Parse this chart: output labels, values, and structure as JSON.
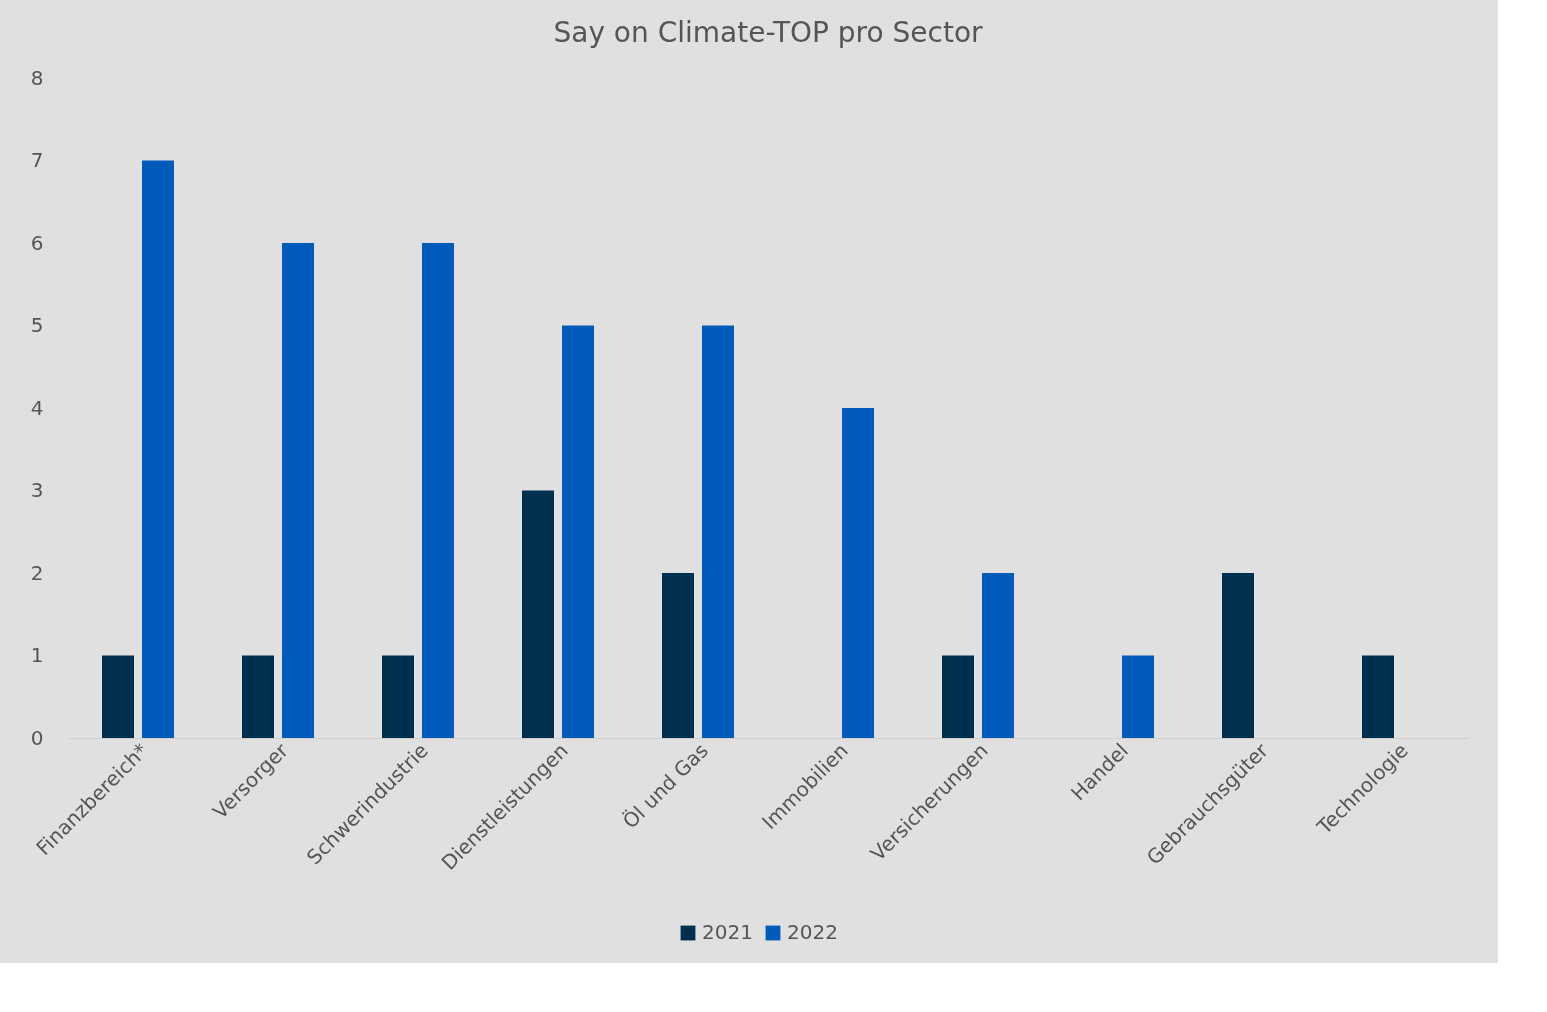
{
  "chart_data": {
    "type": "bar",
    "title": "Say on Climate-TOP pro Sector",
    "categories": [
      "Finanzbereich*",
      "Versorger",
      "Schwerindustrie",
      "Dienstleistungen",
      "Öl und Gas",
      "Immobilien",
      "Versicherungen",
      "Handel",
      "Gebrauchsgüter",
      "Technologie"
    ],
    "series": [
      {
        "name": "2021",
        "color": "#00304f",
        "values": [
          1,
          1,
          1,
          3,
          2,
          null,
          1,
          null,
          2,
          1
        ]
      },
      {
        "name": "2022",
        "color": "#005bbb",
        "values": [
          7,
          6,
          6,
          5,
          5,
          4,
          2,
          1,
          null,
          null
        ]
      }
    ],
    "ylim": [
      0,
      8
    ],
    "yticks": [
      0,
      1,
      2,
      3,
      4,
      5,
      6,
      7,
      8
    ],
    "legend": "bottom"
  }
}
